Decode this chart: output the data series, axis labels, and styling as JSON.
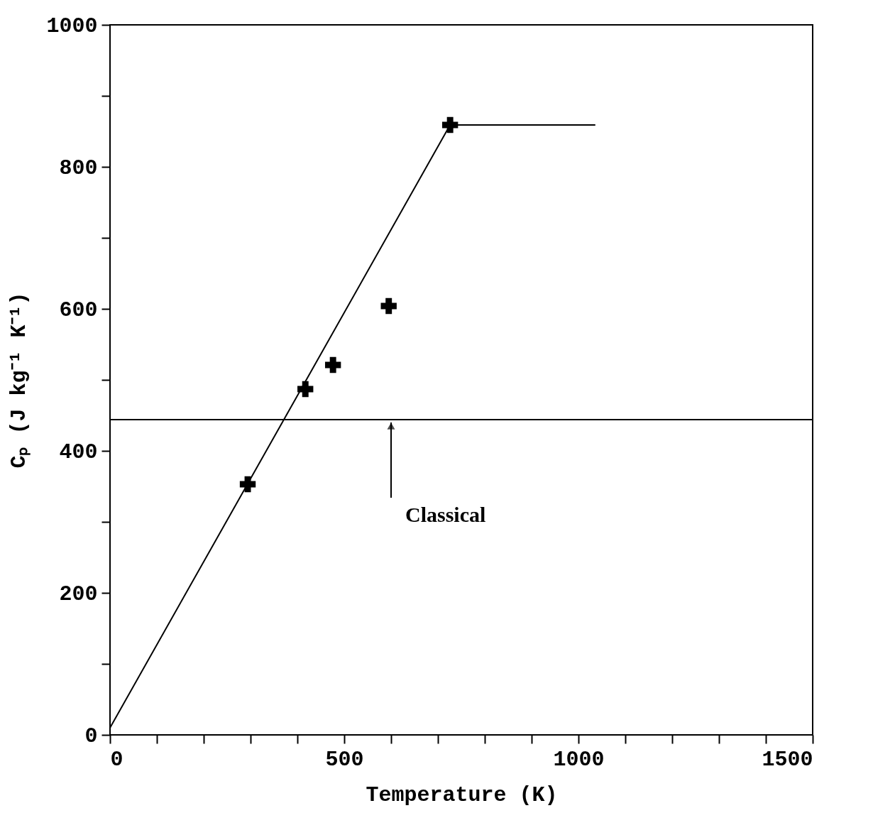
{
  "chart_data": {
    "type": "line",
    "xlabel": "Temperature (K)",
    "ylabel": "Cₚ (J kg⁻¹ K⁻¹)",
    "xlim": [
      0,
      1500
    ],
    "ylim": [
      0,
      1000
    ],
    "xticks": [
      0,
      {
        "value": 100,
        "label": null
      },
      {
        "value": 200,
        "label": null
      },
      {
        "value": 300,
        "label": null
      },
      {
        "value": 400,
        "label": null
      },
      500,
      {
        "value": 600,
        "label": null
      },
      {
        "value": 700,
        "label": null
      },
      {
        "value": 800,
        "label": null
      },
      {
        "value": 900,
        "label": null
      },
      1000,
      {
        "value": 1100,
        "label": null
      },
      {
        "value": 1200,
        "label": null
      },
      {
        "value": 1300,
        "label": null
      },
      {
        "value": 1400,
        "label": null
      },
      1500
    ],
    "yticks": [
      0,
      {
        "value": 100,
        "label": null
      },
      200,
      {
        "value": 300,
        "label": null
      },
      400,
      {
        "value": 500,
        "label": null
      },
      600,
      {
        "value": 700,
        "label": null
      },
      800,
      {
        "value": 900,
        "label": null
      },
      1000
    ],
    "series": [
      {
        "color": "#000000",
        "x": [
          0,
          726,
          1036
        ],
        "values": [
          10,
          859,
          859
        ],
        "marker": "none"
      },
      {
        "type": "scatter",
        "color": "#000000",
        "x": [
          294,
          417,
          476,
          595,
          726
        ],
        "values": [
          353,
          487,
          521,
          604,
          859
        ],
        "marker": "cross"
      }
    ],
    "ref_lines": [
      {
        "axis": "y",
        "value": 444,
        "color": "#000000"
      }
    ],
    "annotations": [
      {
        "text": "Classical",
        "x": 600,
        "y": 444
      }
    ],
    "grid": false
  }
}
